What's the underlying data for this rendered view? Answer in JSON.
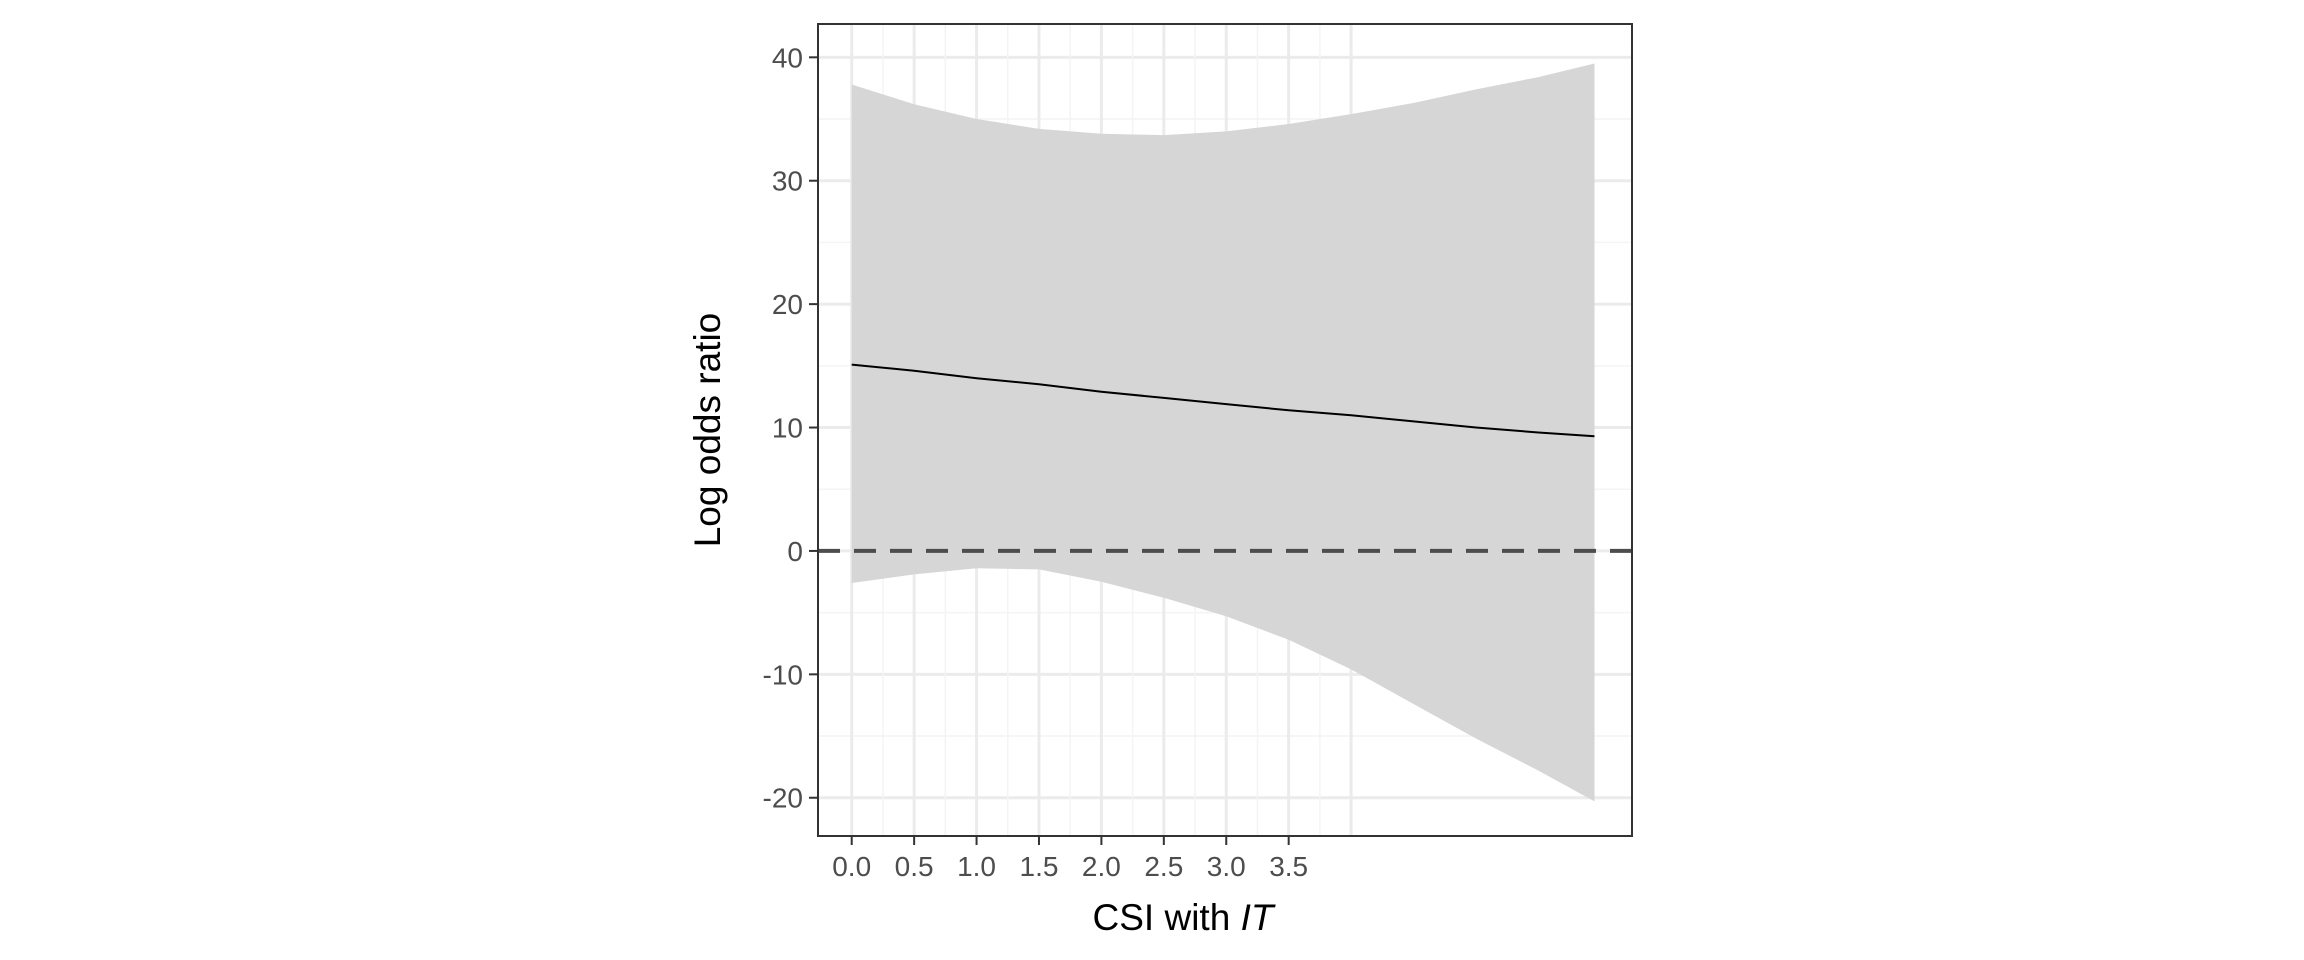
{
  "chart_data": {
    "type": "line",
    "title": "",
    "xlabel": {
      "prefix": "CSI with ",
      "italic": "IT"
    },
    "ylabel": "Log odds ratio",
    "xlim": [
      -0.27,
      6.25
    ],
    "ylim": [
      -23.1,
      42.7
    ],
    "x_ticks": [
      "0.0",
      "0.5",
      "1.0",
      "1.5",
      "2.0",
      "2.5",
      "3.0",
      "3.5"
    ],
    "y_ticks": [
      "40",
      "30",
      "20",
      "10",
      "0",
      "-10",
      "-20"
    ],
    "x_gridlines": [
      0,
      0.25,
      0.5,
      0.75,
      1,
      1.25,
      1.5,
      1.75,
      2,
      2.25,
      2.5,
      2.75,
      3,
      3.25,
      3.5,
      3.75,
      4
    ],
    "y_gridlines_minor": [
      35,
      25,
      15,
      5,
      -5,
      -15
    ],
    "reference_line": {
      "y": 0,
      "style": "dashed"
    },
    "grid": true,
    "legend": "none",
    "series": [
      {
        "x": [
          0,
          0.5,
          1,
          1.5,
          2,
          2.5,
          3,
          3.5,
          4,
          4.5,
          5,
          5.5,
          5.95
        ],
        "y": [
          15.1,
          14.6,
          14.0,
          13.5,
          12.9,
          12.4,
          11.9,
          11.4,
          11.0,
          10.5,
          10.0,
          9.6,
          9.3
        ]
      }
    ],
    "ribbon": {
      "x": [
        0,
        0.5,
        1,
        1.5,
        2,
        2.5,
        3,
        3.5,
        4,
        4.5,
        5,
        5.5,
        5.95
      ],
      "upper": [
        37.8,
        36.2,
        35.0,
        34.2,
        33.8,
        33.7,
        34.0,
        34.6,
        35.4,
        36.3,
        37.4,
        38.4,
        39.5
      ],
      "lower": [
        -2.6,
        -1.9,
        -1.4,
        -1.5,
        -2.5,
        -3.8,
        -5.3,
        -7.2,
        -9.6,
        -12.4,
        -15.2,
        -17.8,
        -20.3
      ]
    },
    "colors": {
      "line": "#000000",
      "ribbon": "#d6d6d6",
      "grid_major": "#ebebeb",
      "grid_minor": "#f4f4f4",
      "reference": "#4d4d4d",
      "panel_border": "#333333"
    }
  }
}
